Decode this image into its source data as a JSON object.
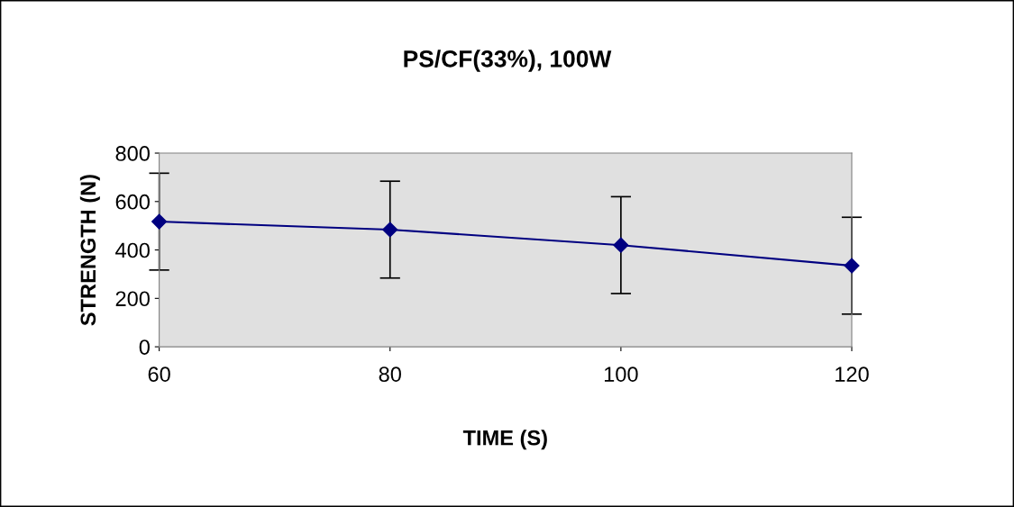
{
  "chart_data": {
    "type": "line",
    "title": "PS/CF(33%), 100W",
    "xlabel": "TIME (S)",
    "ylabel": "STRENGTH (N)",
    "x": [
      60,
      80,
      100,
      120
    ],
    "series": [
      {
        "color": "#000080",
        "values": [
          517,
          484,
          420,
          335
        ],
        "errors": [
          200,
          200,
          200,
          200
        ]
      }
    ],
    "xlim": [
      60,
      120
    ],
    "xticks": [
      60,
      80,
      100,
      120
    ],
    "ylim": [
      0,
      800
    ],
    "yticks": [
      0,
      200,
      400,
      600,
      800
    ],
    "marker": "diamond",
    "line_style": "solid",
    "grid": false,
    "legend": false
  }
}
